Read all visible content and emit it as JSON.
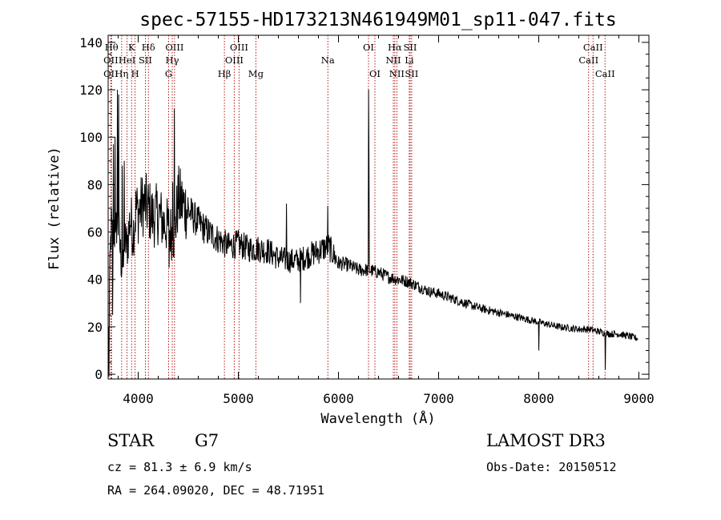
{
  "chart_data": {
    "type": "line",
    "title": "spec-57155-HD173213N461949M01_sp11-047.fits",
    "xlabel": "Wavelength (Å)",
    "ylabel": "Flux (relative)",
    "xlim": [
      3700,
      9100
    ],
    "ylim": [
      -2,
      143
    ],
    "xticks": [
      4000,
      5000,
      6000,
      7000,
      8000,
      9000
    ],
    "xtick_labels": [
      "4000",
      "5000",
      "6000",
      "7000",
      "8000",
      "9000"
    ],
    "yticks": [
      0,
      20,
      40,
      60,
      80,
      100,
      120,
      140
    ],
    "ytick_labels": [
      "0",
      "20",
      "40",
      "60",
      "80",
      "100",
      "120",
      "140"
    ],
    "grid": false,
    "series": [
      {
        "name": "flux",
        "continuum_x": [
          3700,
          3715,
          3730,
          3745,
          3760,
          3775,
          3790,
          3810,
          3830,
          3850,
          3870,
          3890,
          3920,
          3950,
          3980,
          4000,
          4050,
          4100,
          4150,
          4200,
          4250,
          4300,
          4330,
          4360,
          4400,
          4500,
          4600,
          4700,
          4800,
          4900,
          5000,
          5100,
          5200,
          5300,
          5400,
          5500,
          5600,
          5700,
          5800,
          5900,
          6000,
          6100,
          6200,
          6300,
          6400,
          6500,
          6600,
          6700,
          6800,
          6900,
          7000,
          7200,
          7400,
          7600,
          7800,
          8000,
          8200,
          8400,
          8500,
          8600,
          8700,
          8800,
          8900,
          9000
        ],
        "continuum_y": [
          8,
          40,
          62,
          56,
          64,
          52,
          72,
          58,
          48,
          44,
          56,
          54,
          66,
          60,
          70,
          68,
          72,
          70,
          66,
          68,
          64,
          62,
          60,
          58,
          74,
          69,
          64,
          60,
          57,
          54,
          55,
          53,
          53,
          52,
          49,
          48,
          48,
          50,
          52,
          54,
          47,
          46,
          44,
          44,
          43,
          41,
          40,
          39,
          37,
          35,
          34,
          31,
          28,
          26,
          24,
          22,
          20,
          19,
          19,
          18,
          17,
          17,
          16,
          15
        ],
        "noise": 5,
        "spikes": [
          {
            "x": 3752,
            "y": 97
          },
          {
            "x": 3770,
            "y": 100
          },
          {
            "x": 3794,
            "y": 120
          },
          {
            "x": 3805,
            "y": 118
          },
          {
            "x": 3840,
            "y": 88
          },
          {
            "x": 3860,
            "y": 90
          },
          {
            "x": 4345,
            "y": 81
          },
          {
            "x": 4360,
            "y": 112
          },
          {
            "x": 5480,
            "y": 72
          },
          {
            "x": 5892,
            "y": 71
          },
          {
            "x": 6300,
            "y": 120
          },
          {
            "x": 6305,
            "y": 90
          }
        ],
        "dips": [
          {
            "x": 3710,
            "y": -1
          },
          {
            "x": 3745,
            "y": 25
          },
          {
            "x": 4310,
            "y": 45
          },
          {
            "x": 5620,
            "y": 30
          },
          {
            "x": 8000,
            "y": 10
          },
          {
            "x": 8665,
            "y": 2
          }
        ]
      }
    ],
    "annotations": [
      {
        "wavelength": 3734,
        "row": 1,
        "text": "Hθ"
      },
      {
        "wavelength": 3727,
        "row": 2,
        "text": "OII"
      },
      {
        "wavelength": 3727,
        "row": 3,
        "text": "OII"
      },
      {
        "wavelength": 3835,
        "row": 3,
        "text": "Hη"
      },
      {
        "wavelength": 3889,
        "row": 2,
        "text": "HeI"
      },
      {
        "wavelength": 3934,
        "row": 1,
        "text": "K"
      },
      {
        "wavelength": 3969,
        "row": 3,
        "text": "H"
      },
      {
        "wavelength": 4072,
        "row": 2,
        "text": "SII"
      },
      {
        "wavelength": 4102,
        "row": 1,
        "text": "Hδ"
      },
      {
        "wavelength": 4304,
        "row": 3,
        "text": "G"
      },
      {
        "wavelength": 4340,
        "row": 2,
        "text": "Hγ"
      },
      {
        "wavelength": 4363,
        "row": 1,
        "text": "OIII"
      },
      {
        "wavelength": 4861,
        "row": 3,
        "text": "Hβ"
      },
      {
        "wavelength": 4959,
        "row": 2,
        "text": "OIII"
      },
      {
        "wavelength": 5007,
        "row": 1,
        "text": "OIII"
      },
      {
        "wavelength": 5175,
        "row": 3,
        "text": "Mg"
      },
      {
        "wavelength": 5894,
        "row": 2,
        "text": "Na"
      },
      {
        "wavelength": 6300,
        "row": 1,
        "text": "OI"
      },
      {
        "wavelength": 6364,
        "row": 3,
        "text": "OI"
      },
      {
        "wavelength": 6548,
        "row": 2,
        "text": "NII"
      },
      {
        "wavelength": 6563,
        "row": 1,
        "text": "Hα"
      },
      {
        "wavelength": 6583,
        "row": 3,
        "text": "NII"
      },
      {
        "wavelength": 6707,
        "row": 2,
        "text": "Li"
      },
      {
        "wavelength": 6716,
        "row": 1,
        "text": "SII"
      },
      {
        "wavelength": 6731,
        "row": 3,
        "text": "SII"
      },
      {
        "wavelength": 8498,
        "row": 2,
        "text": "CaII"
      },
      {
        "wavelength": 8542,
        "row": 1,
        "text": "CaII"
      },
      {
        "wavelength": 8662,
        "row": 3,
        "text": "CaII"
      }
    ],
    "annotation_color": "#aa0000"
  },
  "info": {
    "object_class": "STAR",
    "subclass": "G7",
    "survey": "LAMOST DR3",
    "redshift": "cz = 81.3 ± 6.9 km/s",
    "obs_date": "Obs-Date: 20150512",
    "coordinates": "RA = 264.09020, DEC =  48.71951"
  }
}
